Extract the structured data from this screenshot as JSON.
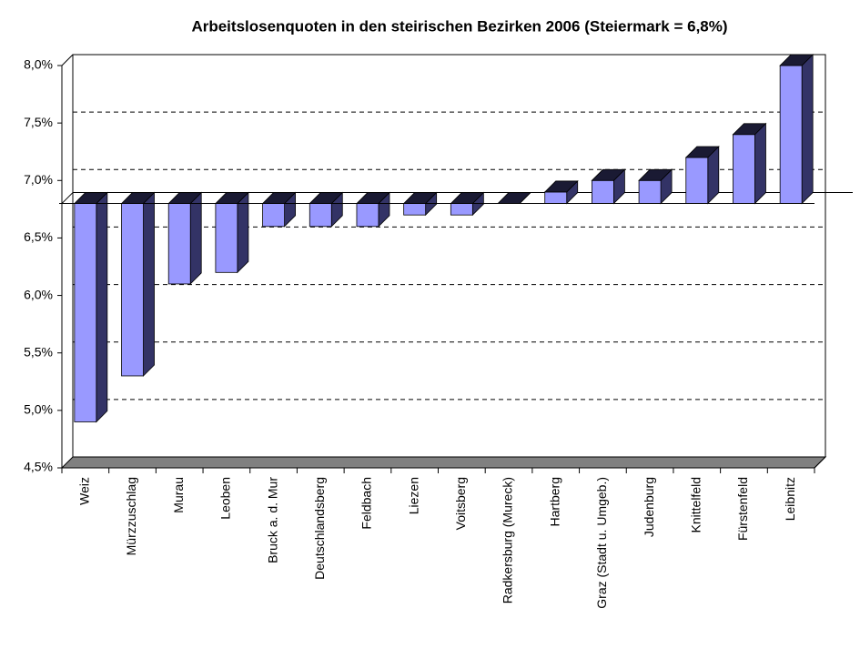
{
  "chart_data": {
    "type": "bar3d",
    "title": "Arbeitslosenquoten in den steirischen Bezirken 2006 (Steiermark = 6,8%)",
    "categories": [
      "Weiz",
      "Mürzzuschlag",
      "Murau",
      "Leoben",
      "Bruck a. d. Mur",
      "Deutschlandsberg",
      "Feldbach",
      "Liezen",
      "Voitsberg",
      "Radkersburg (Mureck)",
      "Hartberg",
      "Graz (Stadt u. Umgeb.)",
      "Judenburg",
      "Knittelfeld",
      "Fürstenfeld",
      "Leibnitz"
    ],
    "values": [
      4.9,
      5.3,
      6.1,
      6.2,
      6.6,
      6.6,
      6.6,
      6.7,
      6.7,
      6.8,
      6.9,
      7.0,
      7.0,
      7.2,
      7.4,
      8.0
    ],
    "baseline": 6.8,
    "color": "#9999ff",
    "ylim": [
      4.5,
      8.0
    ],
    "yticks": [
      {
        "value": 4.5,
        "label": "4,5%"
      },
      {
        "value": 5.0,
        "label": "5,0%"
      },
      {
        "value": 5.5,
        "label": "5,5%"
      },
      {
        "value": 6.0,
        "label": "6,0%"
      },
      {
        "value": 6.5,
        "label": "6,5%"
      },
      {
        "value": 7.0,
        "label": "7,0%"
      },
      {
        "value": 7.5,
        "label": "7,5%"
      },
      {
        "value": 8.0,
        "label": "8,0%"
      }
    ],
    "grid": true
  }
}
